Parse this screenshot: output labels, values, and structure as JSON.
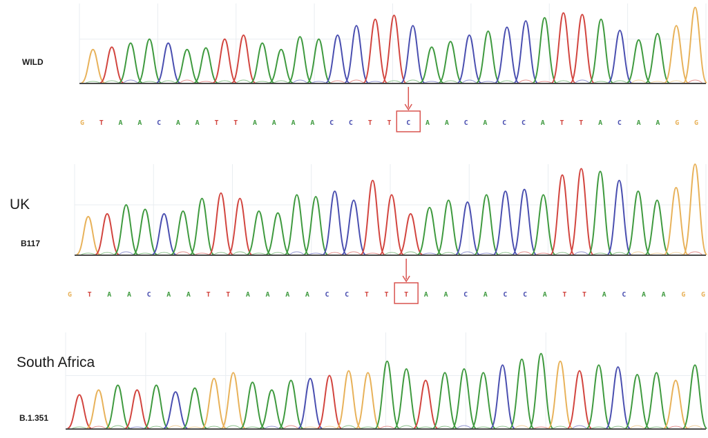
{
  "colors": {
    "A": "#3f9a3f",
    "C": "#4a4fb0",
    "G": "#e8b25a",
    "T": "#d2453f",
    "baseline": "#4a4a4a",
    "grid": "#e9edf1",
    "marker": "#d9534f"
  },
  "tracks": [
    {
      "sample_label": "WILD",
      "variant_label": "",
      "bases": [
        "G",
        "T",
        "A",
        "A",
        "C",
        "A",
        "A",
        "T",
        "T",
        "A",
        "A",
        "A",
        "A",
        "C",
        "C",
        "T",
        "T",
        "C",
        "A",
        "A",
        "C",
        "A",
        "C",
        "C",
        "A",
        "T",
        "T",
        "A",
        "C",
        "A",
        "A",
        "G",
        "G"
      ],
      "highlight_index": 17
    },
    {
      "sample_label": "B117",
      "variant_label": "UK",
      "bases": [
        "G",
        "T",
        "A",
        "A",
        "C",
        "A",
        "A",
        "T",
        "T",
        "A",
        "A",
        "A",
        "A",
        "C",
        "C",
        "T",
        "T",
        "T",
        "A",
        "A",
        "C",
        "A",
        "C",
        "C",
        "A",
        "T",
        "T",
        "A",
        "C",
        "A",
        "A",
        "G",
        "G"
      ],
      "highlight_index": 17
    },
    {
      "sample_label": "B.1.351",
      "variant_label": "South Africa",
      "bases": [],
      "highlight_index": null
    }
  ]
}
